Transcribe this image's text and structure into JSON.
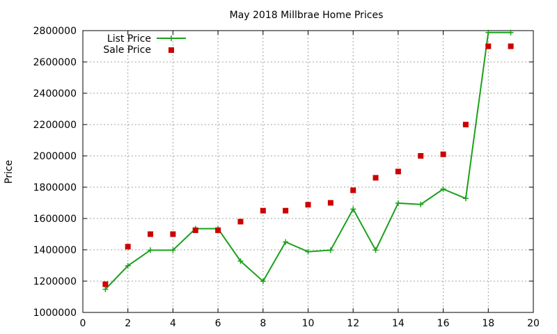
{
  "chart_data": {
    "type": "line",
    "title": "May 2018 Millbrae Home Prices",
    "xlabel": "",
    "ylabel": "Price",
    "xlim": [
      0,
      20
    ],
    "ylim": [
      1000000,
      2800000
    ],
    "x_ticks": [
      0,
      2,
      4,
      6,
      8,
      10,
      12,
      14,
      16,
      18,
      20
    ],
    "y_ticks": [
      1000000,
      1200000,
      1400000,
      1600000,
      1800000,
      2000000,
      2200000,
      2400000,
      2600000,
      2800000
    ],
    "grid": true,
    "legend_position": "top-left",
    "series": [
      {
        "name": "List Price",
        "style": "line-plus",
        "color": "#1aa01a",
        "x": [
          1,
          2,
          3,
          4,
          5,
          6,
          7,
          8,
          9,
          10,
          11,
          12,
          13,
          14,
          15,
          16,
          17,
          18,
          19
        ],
        "values": [
          1148000,
          1298000,
          1398000,
          1398000,
          1535000,
          1535000,
          1328000,
          1199000,
          1450000,
          1388000,
          1398000,
          1660000,
          1398000,
          1698000,
          1690000,
          1788000,
          1728000,
          2788000,
          2788000
        ]
      },
      {
        "name": "Sale Price",
        "style": "square-points",
        "color": "#cc0000",
        "x": [
          1,
          2,
          3,
          4,
          5,
          6,
          7,
          8,
          9,
          10,
          11,
          12,
          13,
          14,
          15,
          16,
          17,
          18,
          19
        ],
        "values": [
          1180000,
          1420000,
          1500000,
          1500000,
          1525000,
          1525000,
          1580000,
          1650000,
          1650000,
          1688000,
          1700000,
          1780000,
          1860000,
          1900000,
          2000000,
          2010000,
          2200000,
          2700000,
          2700000
        ]
      }
    ]
  }
}
